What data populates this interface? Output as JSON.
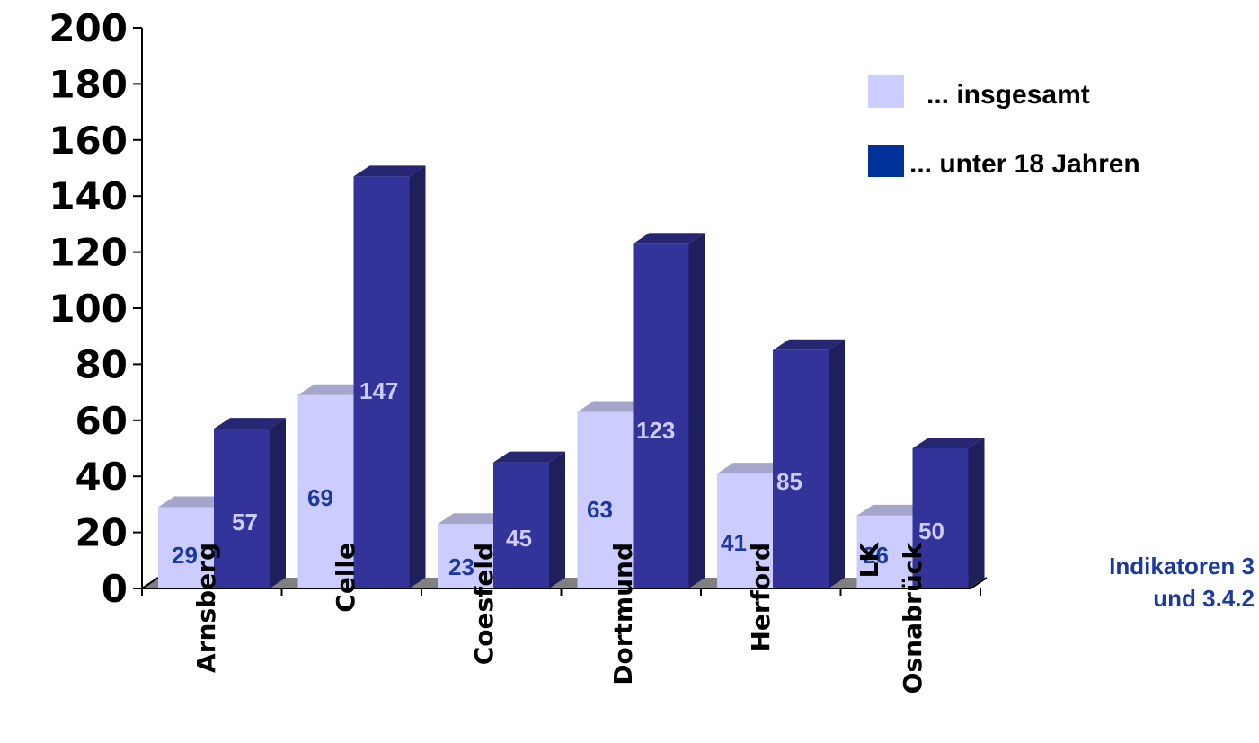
{
  "chart_data": {
    "type": "bar",
    "categories": [
      "Arnsberg",
      "Celle",
      "Coesfeld",
      "Dortmund",
      "Herford",
      "LK Osnabrück"
    ],
    "category_lines": [
      [
        "Arnsberg"
      ],
      [
        "Celle"
      ],
      [
        "Coesfeld"
      ],
      [
        "Dortmund"
      ],
      [
        "Herford"
      ],
      [
        "LK",
        "Osnabrück"
      ]
    ],
    "series": [
      {
        "name": "... insgesamt",
        "values": [
          29,
          69,
          23,
          63,
          41,
          26
        ],
        "color": "#ccccff",
        "label_color": "#1a3aa0"
      },
      {
        "name": "... unter 18 Jahren",
        "values": [
          57,
          147,
          45,
          123,
          85,
          50
        ],
        "color": "#333399",
        "label_color": "#ccccff"
      }
    ],
    "ylim": [
      0,
      200
    ],
    "yticks": [
      0,
      20,
      40,
      60,
      80,
      100,
      120,
      140,
      160,
      180,
      200
    ],
    "grid": false,
    "legend": "top-right",
    "three_d": true
  },
  "note": {
    "line1": "Indikatoren 3",
    "line2": "und 3.4.2"
  }
}
